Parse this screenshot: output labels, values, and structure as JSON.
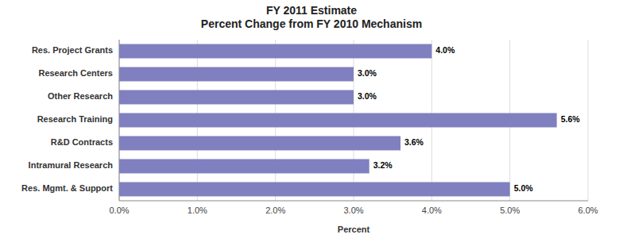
{
  "chart_data": {
    "type": "bar",
    "orientation": "horizontal",
    "title": "FY 2011 Estimate\nPercent Change from FY 2010 Mechanism",
    "xlabel": "Percent",
    "categories": [
      "Res. Project Grants",
      "Research Centers",
      "Other Research",
      "Research Training",
      "R&D Contracts",
      "Intramural Research",
      "Res. Mgmt. & Support"
    ],
    "values": [
      4.0,
      3.0,
      3.0,
      5.6,
      3.6,
      3.2,
      5.0
    ],
    "value_labels": [
      "4.0%",
      "3.0%",
      "3.0%",
      "5.6%",
      "3.6%",
      "3.2%",
      "5.0%"
    ],
    "color": "#8080C0",
    "xlim": [
      0,
      6.0
    ],
    "xticks": [
      {
        "value": 0.0,
        "label": "0.0%"
      },
      {
        "value": 1.0,
        "label": "1.0%"
      },
      {
        "value": 2.0,
        "label": "2.0%"
      },
      {
        "value": 3.0,
        "label": "3.0%"
      },
      {
        "value": 4.0,
        "label": "4.0%"
      },
      {
        "value": 5.0,
        "label": "5.0%"
      },
      {
        "value": 6.0,
        "label": "6.0%"
      }
    ],
    "grid": true,
    "data_labels": true
  }
}
